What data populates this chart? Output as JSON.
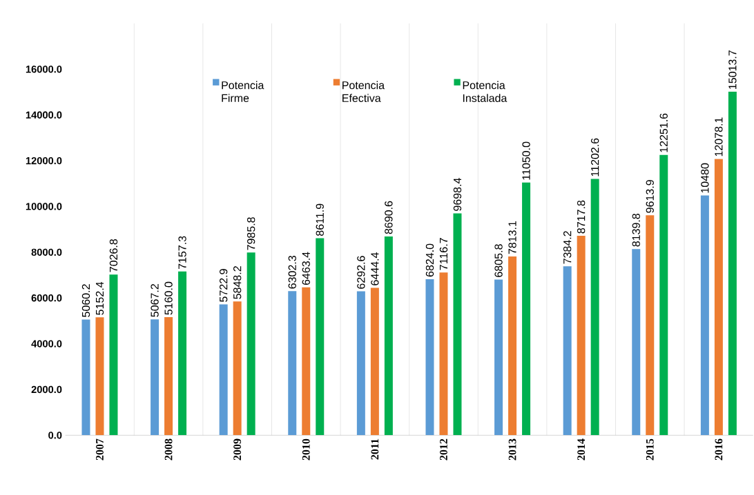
{
  "chart_data": {
    "type": "bar",
    "categories": [
      "2007",
      "2008",
      "2009",
      "2010",
      "2011",
      "2012",
      "2013",
      "2014",
      "2015",
      "2016"
    ],
    "series": [
      {
        "name": "Potencia Firme",
        "color": "#5b9bd5",
        "values": [
          5060.2,
          5067.2,
          5722.9,
          6302.3,
          6292.6,
          6824,
          6805.8,
          7384.2,
          8139.8,
          10480
        ],
        "value_labels": [
          "5060.2",
          "5067.2",
          "5722.9",
          "6302.3",
          "6292.6",
          "6824.0",
          "6805.8",
          "7384.2",
          "8139.8",
          "10480"
        ]
      },
      {
        "name": "Potencia Efectiva",
        "color": "#ed7d31",
        "values": [
          5152.4,
          5160,
          5848.2,
          6463.4,
          6444.4,
          7116.7,
          7813.1,
          8717.8,
          9613.9,
          12078.1
        ],
        "value_labels": [
          "5152.4",
          "5160.0",
          "5848.2",
          "6463.4",
          "6444.4",
          "7116.7",
          "7813.1",
          "8717.8",
          "9613.9",
          "12078.1"
        ]
      },
      {
        "name": "Potencia Instalada",
        "color": "#00b050",
        "values": [
          7026.8,
          7157.3,
          7985.8,
          8611.9,
          8690.6,
          9698.4,
          11050,
          11202.6,
          12251.6,
          15013.7
        ],
        "value_labels": [
          "7026.8",
          "7157.3",
          "7985.8",
          "8611.9",
          "8690.6",
          "9698.4",
          "11050.0",
          "11202.6",
          "12251.6",
          "15013.7"
        ]
      }
    ],
    "ylim": [
      0,
      18000
    ],
    "yticks": [
      {
        "value": 0,
        "label": "0.0"
      },
      {
        "value": 2000,
        "label": "2000.0"
      },
      {
        "value": 4000,
        "label": "4000.0"
      },
      {
        "value": 6000,
        "label": "6000.0"
      },
      {
        "value": 8000,
        "label": "8000.0"
      },
      {
        "value": 10000,
        "label": "10000.0"
      },
      {
        "value": 12000,
        "label": "12000.0"
      },
      {
        "value": 14000,
        "label": "14000.0"
      },
      {
        "value": 16000,
        "label": "16000.0"
      }
    ],
    "grid": "x",
    "legend": "top"
  }
}
